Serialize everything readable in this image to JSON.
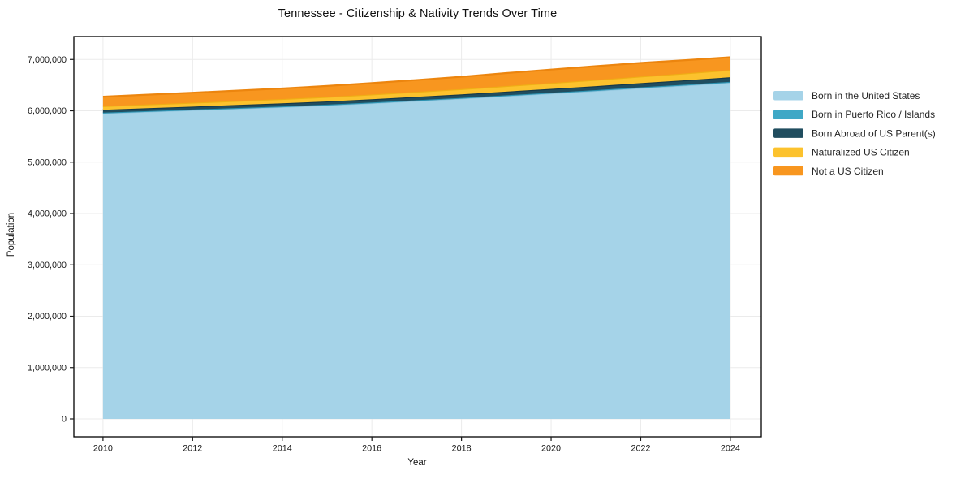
{
  "chart_data": {
    "type": "area",
    "stacked": true,
    "title": "Tennessee - Citizenship & Nativity Trends Over Time",
    "xlabel": "Year",
    "ylabel": "Population",
    "x": [
      2010,
      2011,
      2012,
      2013,
      2014,
      2015,
      2016,
      2017,
      2018,
      2019,
      2020,
      2021,
      2022,
      2023,
      2024
    ],
    "series": [
      {
        "name": "Born in the United States",
        "color": "#a5d3e8",
        "edge": "#8ec4dd",
        "values": [
          5955000,
          5985000,
          6015000,
          6045000,
          6075000,
          6110000,
          6150000,
          6195000,
          6240000,
          6290000,
          6340000,
          6390000,
          6445000,
          6495000,
          6550000
        ]
      },
      {
        "name": "Born in Puerto Rico / Islands",
        "color": "#3fa8c6",
        "edge": "#2d93b2",
        "values": [
          10000,
          10000,
          10000,
          11000,
          11000,
          11000,
          12000,
          12000,
          12000,
          13000,
          13000,
          14000,
          14000,
          15000,
          15000
        ]
      },
      {
        "name": "Born Abroad of US Parent(s)",
        "color": "#204d5f",
        "edge": "#15384a",
        "values": [
          55000,
          56000,
          57000,
          58000,
          60000,
          62000,
          64000,
          66000,
          68000,
          71000,
          74000,
          77000,
          81000,
          85000,
          89000
        ]
      },
      {
        "name": "Naturalized US Citizen",
        "color": "#fcc22d",
        "edge": "#efae15",
        "values": [
          70000,
          73000,
          76000,
          79000,
          83000,
          87000,
          92000,
          97000,
          103000,
          109000,
          115000,
          121000,
          127000,
          134000,
          142000
        ]
      },
      {
        "name": "Not a US Citizen",
        "color": "#f8961f",
        "edge": "#ec850e",
        "values": [
          185000,
          190000,
          195000,
          200000,
          207000,
          214000,
          222000,
          230000,
          240000,
          252000,
          262000,
          268000,
          266000,
          258000,
          248000
        ]
      }
    ],
    "xticks": [
      2010,
      2012,
      2014,
      2016,
      2018,
      2020,
      2022,
      2024
    ],
    "xtick_labels": [
      "2010",
      "2012",
      "2014",
      "2016",
      "2018",
      "2020",
      "2022",
      "2024"
    ],
    "yticks": [
      0,
      1000000,
      2000000,
      3000000,
      4000000,
      5000000,
      6000000,
      7000000
    ],
    "ytick_labels": [
      "0",
      "1,000,000",
      "2,000,000",
      "3,000,000",
      "4,000,000",
      "5,000,000",
      "6,000,000",
      "7,000,000"
    ],
    "xlim": [
      2009.35,
      2024.69
    ],
    "ylim": [
      -348000,
      7447000
    ],
    "grid": true,
    "grid_color": "#ebebeb",
    "spine_color": "#000000",
    "tick_color": "#1a1a1a",
    "legend_position": "right"
  }
}
